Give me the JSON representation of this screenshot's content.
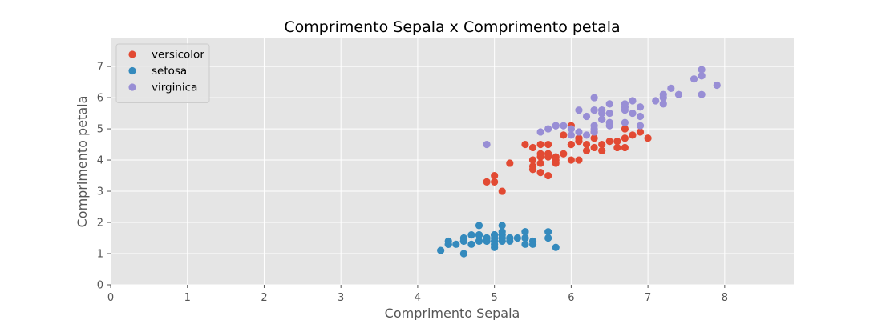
{
  "chart_data": {
    "type": "scatter",
    "title": "Comprimento Sepala x Comprimento petala",
    "xlabel": "Comprimento Sepala",
    "ylabel": "Comprimento petala",
    "xlim": [
      0,
      8.9
    ],
    "ylim": [
      0,
      7.9
    ],
    "xticks": [
      "0",
      "1",
      "2",
      "3",
      "4",
      "5",
      "6",
      "7",
      "8"
    ],
    "yticks": [
      "0",
      "1",
      "2",
      "3",
      "4",
      "5",
      "6",
      "7"
    ],
    "grid": true,
    "legend_position": "top-left",
    "background_color": "#e5e5e5",
    "series": [
      {
        "name": "versicolor",
        "color": "#e24a33",
        "points": [
          [
            7.0,
            4.7
          ],
          [
            6.4,
            4.5
          ],
          [
            6.9,
            4.9
          ],
          [
            5.5,
            4.0
          ],
          [
            6.5,
            4.6
          ],
          [
            5.7,
            4.5
          ],
          [
            6.3,
            4.7
          ],
          [
            4.9,
            3.3
          ],
          [
            6.6,
            4.6
          ],
          [
            5.2,
            3.9
          ],
          [
            5.0,
            3.5
          ],
          [
            5.9,
            4.2
          ],
          [
            6.0,
            4.0
          ],
          [
            6.1,
            4.7
          ],
          [
            5.6,
            3.6
          ],
          [
            6.7,
            4.4
          ],
          [
            5.6,
            4.5
          ],
          [
            5.8,
            4.1
          ],
          [
            6.2,
            4.5
          ],
          [
            5.6,
            3.9
          ],
          [
            5.9,
            4.8
          ],
          [
            6.1,
            4.0
          ],
          [
            6.3,
            4.9
          ],
          [
            6.1,
            4.7
          ],
          [
            6.4,
            4.3
          ],
          [
            6.6,
            4.4
          ],
          [
            6.8,
            4.8
          ],
          [
            6.7,
            5.0
          ],
          [
            6.0,
            4.5
          ],
          [
            5.7,
            3.5
          ],
          [
            5.5,
            3.8
          ],
          [
            5.5,
            3.7
          ],
          [
            5.8,
            3.9
          ],
          [
            6.0,
            5.1
          ],
          [
            5.4,
            4.5
          ],
          [
            6.0,
            4.5
          ],
          [
            6.7,
            4.7
          ],
          [
            6.3,
            4.4
          ],
          [
            5.6,
            4.1
          ],
          [
            5.5,
            4.0
          ],
          [
            5.5,
            4.4
          ],
          [
            6.1,
            4.6
          ],
          [
            5.8,
            4.0
          ],
          [
            5.0,
            3.3
          ],
          [
            5.6,
            4.2
          ],
          [
            5.7,
            4.2
          ],
          [
            5.7,
            4.2
          ],
          [
            6.2,
            4.3
          ],
          [
            5.1,
            3.0
          ],
          [
            5.7,
            4.1
          ]
        ]
      },
      {
        "name": "setosa",
        "color": "#348abd",
        "points": [
          [
            5.1,
            1.4
          ],
          [
            4.9,
            1.4
          ],
          [
            4.7,
            1.3
          ],
          [
            4.6,
            1.5
          ],
          [
            5.0,
            1.4
          ],
          [
            5.4,
            1.7
          ],
          [
            4.6,
            1.4
          ],
          [
            5.0,
            1.5
          ],
          [
            4.4,
            1.4
          ],
          [
            4.9,
            1.5
          ],
          [
            5.4,
            1.5
          ],
          [
            4.8,
            1.6
          ],
          [
            4.8,
            1.4
          ],
          [
            4.3,
            1.1
          ],
          [
            5.8,
            1.2
          ],
          [
            5.7,
            1.5
          ],
          [
            5.4,
            1.3
          ],
          [
            5.1,
            1.4
          ],
          [
            5.7,
            1.7
          ],
          [
            5.1,
            1.5
          ],
          [
            5.4,
            1.7
          ],
          [
            5.1,
            1.5
          ],
          [
            4.6,
            1.0
          ],
          [
            5.1,
            1.7
          ],
          [
            4.8,
            1.9
          ],
          [
            5.0,
            1.6
          ],
          [
            5.0,
            1.6
          ],
          [
            5.2,
            1.5
          ],
          [
            5.2,
            1.4
          ],
          [
            4.7,
            1.6
          ],
          [
            4.8,
            1.6
          ],
          [
            5.4,
            1.5
          ],
          [
            5.2,
            1.5
          ],
          [
            5.5,
            1.4
          ],
          [
            4.9,
            1.5
          ],
          [
            5.0,
            1.2
          ],
          [
            5.5,
            1.3
          ],
          [
            4.9,
            1.4
          ],
          [
            4.4,
            1.3
          ],
          [
            5.1,
            1.5
          ],
          [
            5.0,
            1.3
          ],
          [
            4.5,
            1.3
          ],
          [
            4.4,
            1.3
          ],
          [
            5.0,
            1.6
          ],
          [
            5.1,
            1.9
          ],
          [
            4.8,
            1.4
          ],
          [
            5.1,
            1.6
          ],
          [
            4.6,
            1.4
          ],
          [
            5.3,
            1.5
          ],
          [
            5.0,
            1.4
          ]
        ]
      },
      {
        "name": "virginica",
        "color": "#988ed5",
        "points": [
          [
            6.3,
            6.0
          ],
          [
            5.8,
            5.1
          ],
          [
            7.1,
            5.9
          ],
          [
            6.3,
            5.6
          ],
          [
            6.5,
            5.8
          ],
          [
            7.6,
            6.6
          ],
          [
            4.9,
            4.5
          ],
          [
            7.3,
            6.3
          ],
          [
            6.7,
            5.8
          ],
          [
            7.2,
            6.1
          ],
          [
            6.5,
            5.1
          ],
          [
            6.4,
            5.3
          ],
          [
            6.8,
            5.5
          ],
          [
            5.7,
            5.0
          ],
          [
            5.8,
            5.1
          ],
          [
            6.4,
            5.3
          ],
          [
            6.5,
            5.5
          ],
          [
            7.7,
            6.7
          ],
          [
            7.7,
            6.9
          ],
          [
            6.0,
            5.0
          ],
          [
            6.9,
            5.7
          ],
          [
            5.6,
            4.9
          ],
          [
            7.7,
            6.7
          ],
          [
            6.3,
            4.9
          ],
          [
            6.7,
            5.7
          ],
          [
            7.2,
            6.0
          ],
          [
            6.2,
            4.8
          ],
          [
            6.1,
            4.9
          ],
          [
            6.4,
            5.6
          ],
          [
            7.2,
            5.8
          ],
          [
            7.4,
            6.1
          ],
          [
            7.9,
            6.4
          ],
          [
            6.4,
            5.6
          ],
          [
            6.3,
            5.1
          ],
          [
            6.1,
            5.6
          ],
          [
            7.7,
            6.1
          ],
          [
            6.3,
            5.6
          ],
          [
            6.4,
            5.5
          ],
          [
            6.0,
            4.8
          ],
          [
            6.9,
            5.4
          ],
          [
            6.7,
            5.6
          ],
          [
            6.9,
            5.1
          ],
          [
            5.8,
            5.1
          ],
          [
            6.8,
            5.9
          ],
          [
            6.7,
            5.7
          ],
          [
            6.7,
            5.2
          ],
          [
            6.3,
            5.0
          ],
          [
            6.5,
            5.2
          ],
          [
            6.2,
            5.4
          ],
          [
            5.9,
            5.1
          ]
        ]
      }
    ]
  }
}
